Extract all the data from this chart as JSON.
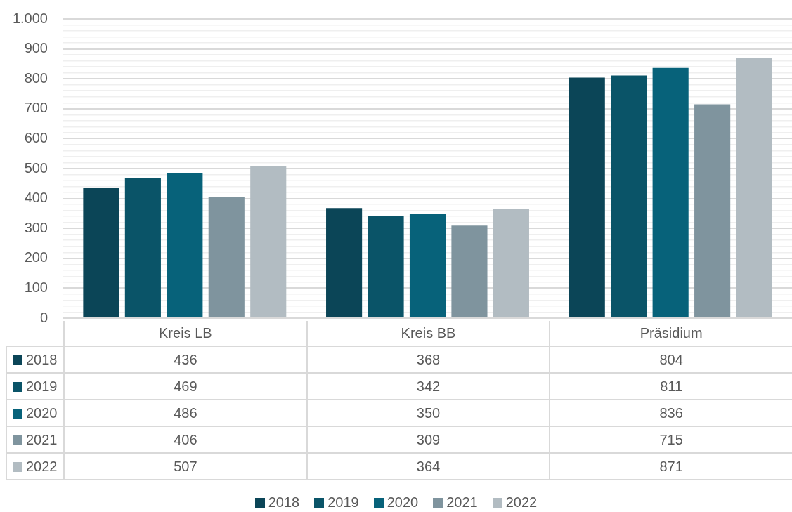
{
  "chart_data": {
    "type": "bar",
    "categories": [
      "Kreis LB",
      "Kreis BB",
      "Präsidium"
    ],
    "series": [
      {
        "name": "2018",
        "color": "#0b4557",
        "values": [
          436,
          368,
          804
        ]
      },
      {
        "name": "2019",
        "color": "#0a5468",
        "values": [
          469,
          342,
          811
        ]
      },
      {
        "name": "2020",
        "color": "#07627a",
        "values": [
          486,
          350,
          836
        ]
      },
      {
        "name": "2021",
        "color": "#7f949e",
        "values": [
          406,
          309,
          715
        ]
      },
      {
        "name": "2022",
        "color": "#b2bcc2",
        "values": [
          507,
          364,
          871
        ]
      }
    ],
    "ylim": [
      0,
      1000
    ],
    "yticks": [
      0,
      {
        "value": 20,
        "label": null
      },
      {
        "value": 40,
        "label": null
      },
      {
        "value": 60,
        "label": null
      },
      {
        "value": 80,
        "label": null
      },
      100,
      {
        "value": 120,
        "label": null
      },
      {
        "value": 140,
        "label": null
      },
      {
        "value": 160,
        "label": null
      },
      {
        "value": 180,
        "label": null
      },
      200,
      {
        "value": 220,
        "label": null
      },
      {
        "value": 240,
        "label": null
      },
      {
        "value": 260,
        "label": null
      },
      {
        "value": 280,
        "label": null
      },
      300,
      {
        "value": 320,
        "label": null
      },
      {
        "value": 340,
        "label": null
      },
      {
        "value": 360,
        "label": null
      },
      {
        "value": 380,
        "label": null
      },
      400,
      {
        "value": 420,
        "label": null
      },
      {
        "value": 440,
        "label": null
      },
      {
        "value": 460,
        "label": null
      },
      {
        "value": 480,
        "label": null
      },
      500,
      {
        "value": 520,
        "label": null
      },
      {
        "value": 540,
        "label": null
      },
      {
        "value": 560,
        "label": null
      },
      {
        "value": 580,
        "label": null
      },
      600,
      {
        "value": 620,
        "label": null
      },
      {
        "value": 640,
        "label": null
      },
      {
        "value": 660,
        "label": null
      },
      {
        "value": 680,
        "label": null
      },
      700,
      {
        "value": 720,
        "label": null
      },
      {
        "value": 740,
        "label": null
      },
      {
        "value": 760,
        "label": null
      },
      {
        "value": 780,
        "label": null
      },
      800,
      {
        "value": 820,
        "label": null
      },
      {
        "value": 840,
        "label": null
      },
      {
        "value": 860,
        "label": null
      },
      {
        "value": 880,
        "label": null
      },
      900,
      {
        "value": 920,
        "label": null
      },
      {
        "value": 940,
        "label": null
      },
      {
        "value": 960,
        "label": null
      },
      {
        "value": 980,
        "label": null
      },
      {
        "value": 1000,
        "label": "1.000"
      }
    ],
    "grid": "y",
    "legend": "bottom",
    "data_labels": true
  }
}
